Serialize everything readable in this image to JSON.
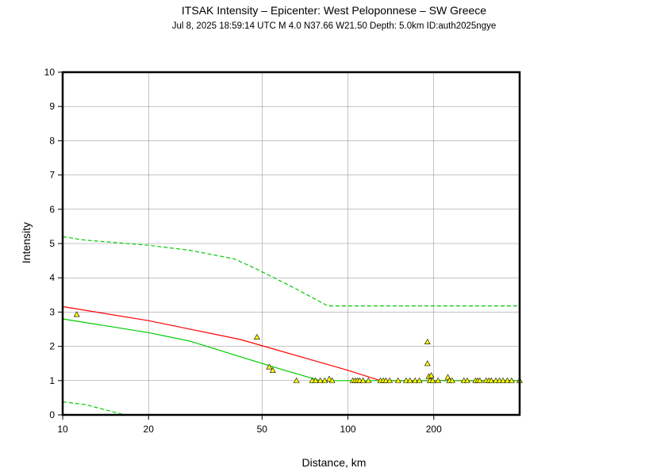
{
  "colors": {
    "median": "#ff0000",
    "predicted": "#00cc00",
    "observed_fill": "#ffff00",
    "observed_stroke": "#000000",
    "grid": "#888888"
  },
  "chart_data": {
    "type": "scatter",
    "title": "ITSAK Intensity –  Epicenter: West Peloponnese – SW Greece",
    "subtitle": "Jul  8, 2025 18:59:14 UTC    M 4.0    N37.66 W21.50    Depth: 5.0km    ID:auth2025ngye",
    "xlabel": "Distance, km",
    "ylabel": "Intensity",
    "x_scale": "log",
    "xlim": [
      10,
      400
    ],
    "ylim": [
      0,
      10
    ],
    "x_ticks": [
      10,
      20,
      50,
      100,
      200
    ],
    "x_tick_labels": [
      "10",
      "20",
      "50",
      "100",
      "200"
    ],
    "y_ticks": [
      0,
      1,
      2,
      3,
      4,
      5,
      6,
      7,
      8,
      9,
      10
    ],
    "y_tick_labels": [
      "0",
      "1",
      "2",
      "3",
      "4",
      "5",
      "6",
      "7",
      "8",
      "9",
      "10"
    ],
    "grid": true,
    "legend": "none",
    "lines": [
      {
        "style": "solid",
        "color": "#ff0000",
        "x": [
          10,
          20,
          30,
          42,
          52,
          75,
          100,
          130,
          400
        ],
        "y": [
          3.16,
          2.75,
          2.45,
          2.2,
          1.98,
          1.6,
          1.3,
          1.0,
          1.0
        ]
      },
      {
        "style": "solid",
        "color": "#00cc00",
        "x": [
          10,
          20,
          28,
          40,
          60,
          80,
          400
        ],
        "y": [
          2.8,
          2.4,
          2.15,
          1.75,
          1.3,
          1.0,
          1.0
        ]
      },
      {
        "style": "dashed",
        "color": "#00cc00",
        "x": [
          10,
          12,
          20,
          28,
          40,
          48,
          65,
          85,
          400
        ],
        "y": [
          5.2,
          5.1,
          4.95,
          4.8,
          4.55,
          4.25,
          3.7,
          3.18,
          3.18
        ]
      },
      {
        "style": "dashed",
        "color": "#00cc00",
        "x": [
          10,
          12,
          16.5
        ],
        "y": [
          0.38,
          0.3,
          0.0
        ]
      }
    ],
    "points": [
      {
        "x": 11.2,
        "y": 2.93
      },
      {
        "x": 48,
        "y": 2.27
      },
      {
        "x": 53,
        "y": 1.4
      },
      {
        "x": 54.5,
        "y": 1.3
      },
      {
        "x": 66,
        "y": 1.0
      },
      {
        "x": 75,
        "y": 1.0
      },
      {
        "x": 77,
        "y": 1.0
      },
      {
        "x": 80,
        "y": 1.0
      },
      {
        "x": 83,
        "y": 1.0
      },
      {
        "x": 86,
        "y": 1.05
      },
      {
        "x": 88,
        "y": 1.0
      },
      {
        "x": 104,
        "y": 1.0
      },
      {
        "x": 106,
        "y": 1.0
      },
      {
        "x": 108,
        "y": 1.0
      },
      {
        "x": 110,
        "y": 1.0
      },
      {
        "x": 113,
        "y": 1.0
      },
      {
        "x": 118,
        "y": 1.0
      },
      {
        "x": 130,
        "y": 1.0
      },
      {
        "x": 133,
        "y": 1.0
      },
      {
        "x": 136,
        "y": 1.0
      },
      {
        "x": 140,
        "y": 1.0
      },
      {
        "x": 150,
        "y": 1.0
      },
      {
        "x": 160,
        "y": 1.0
      },
      {
        "x": 165,
        "y": 1.0
      },
      {
        "x": 172,
        "y": 1.0
      },
      {
        "x": 178,
        "y": 1.0
      },
      {
        "x": 190,
        "y": 2.13
      },
      {
        "x": 190,
        "y": 1.5
      },
      {
        "x": 192,
        "y": 1.12
      },
      {
        "x": 196,
        "y": 1.15
      },
      {
        "x": 194,
        "y": 1.0
      },
      {
        "x": 198,
        "y": 1.0
      },
      {
        "x": 207,
        "y": 1.0
      },
      {
        "x": 224,
        "y": 1.1
      },
      {
        "x": 227,
        "y": 1.0
      },
      {
        "x": 232,
        "y": 1.0
      },
      {
        "x": 255,
        "y": 1.0
      },
      {
        "x": 262,
        "y": 1.0
      },
      {
        "x": 280,
        "y": 1.0
      },
      {
        "x": 285,
        "y": 1.0
      },
      {
        "x": 290,
        "y": 1.0
      },
      {
        "x": 305,
        "y": 1.0
      },
      {
        "x": 312,
        "y": 1.0
      },
      {
        "x": 318,
        "y": 1.0
      },
      {
        "x": 330,
        "y": 1.0
      },
      {
        "x": 340,
        "y": 1.0
      },
      {
        "x": 350,
        "y": 1.0
      },
      {
        "x": 362,
        "y": 1.0
      },
      {
        "x": 375,
        "y": 1.0
      },
      {
        "x": 400,
        "y": 1.0
      }
    ]
  }
}
